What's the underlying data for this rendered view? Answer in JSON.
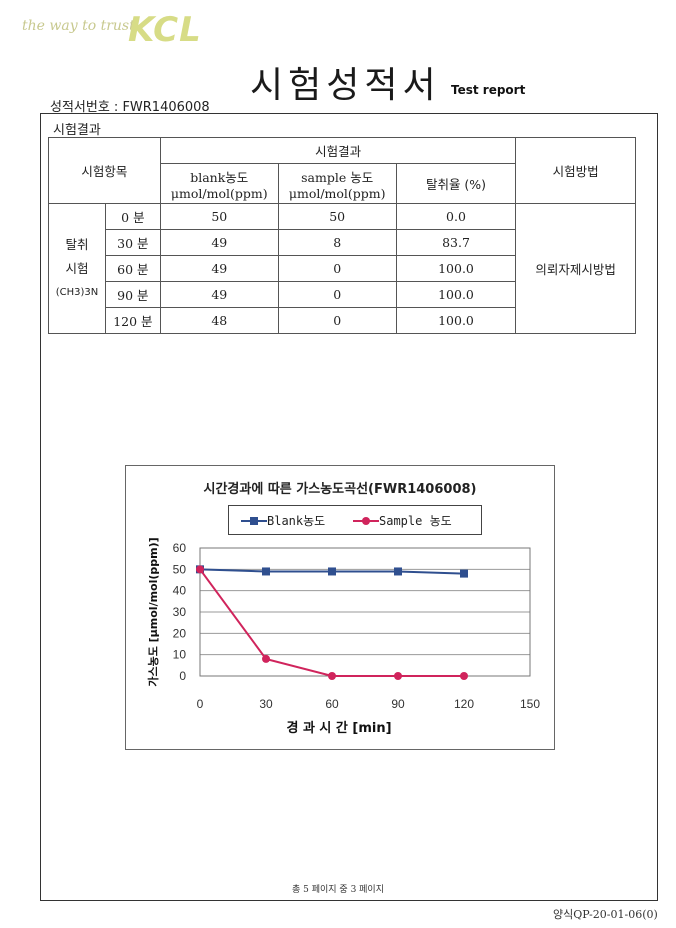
{
  "header": {
    "tagline": "the way to trust",
    "logo": "KCL",
    "title": "시험성적서",
    "subtitle": "Test report",
    "report_no": "성적서번호 : FWR1406008"
  },
  "section_label": "시험결과",
  "table": {
    "h_item": "시험항목",
    "h_results": "시험결과",
    "h_method": "시험방법",
    "h_blank_1": "blank농도",
    "h_blank_2": "μmol/mol(ppm)",
    "h_sample_1": "sample 농도",
    "h_sample_2": "μmol/mol(ppm)",
    "h_rate": "탈취율 (%)",
    "item_1": "탈취",
    "item_2": "시험",
    "item_3": "(CH3)3N",
    "method": "의뢰자제시방법",
    "rows": [
      {
        "time": "0 분",
        "blank": "50",
        "sample": "50",
        "rate": "0.0"
      },
      {
        "time": "30 분",
        "blank": "49",
        "sample": "8",
        "rate": "83.7"
      },
      {
        "time": "60 분",
        "blank": "49",
        "sample": "0",
        "rate": "100.0"
      },
      {
        "time": "90 분",
        "blank": "49",
        "sample": "0",
        "rate": "100.0"
      },
      {
        "time": "120 분",
        "blank": "48",
        "sample": "0",
        "rate": "100.0"
      }
    ]
  },
  "chart_data": {
    "type": "line",
    "title": "시간경과에 따른 가스농도곡선(FWR1406008)",
    "xlabel": "경 과 시 간 [min]",
    "ylabel": "가스농도 [μmol/mol(ppm)]",
    "x": [
      0,
      30,
      60,
      90,
      120
    ],
    "xticks": [
      0,
      30,
      60,
      90,
      120,
      150
    ],
    "yticks": [
      0,
      10,
      20,
      30,
      40,
      50,
      60
    ],
    "xlim": [
      0,
      150
    ],
    "ylim": [
      0,
      60
    ],
    "grid": true,
    "legend": "top",
    "series": [
      {
        "name": "Blank농도",
        "values": [
          50,
          49,
          49,
          49,
          48
        ],
        "color": "#2f4f8f",
        "marker": "square"
      },
      {
        "name": "Sample 농도",
        "values": [
          50,
          8,
          0,
          0,
          0
        ],
        "color": "#d0245c",
        "marker": "circle"
      }
    ]
  },
  "footer": "총 5 페이지 중 3 페이지",
  "form_code": "양식QP-20-01-06(0)"
}
